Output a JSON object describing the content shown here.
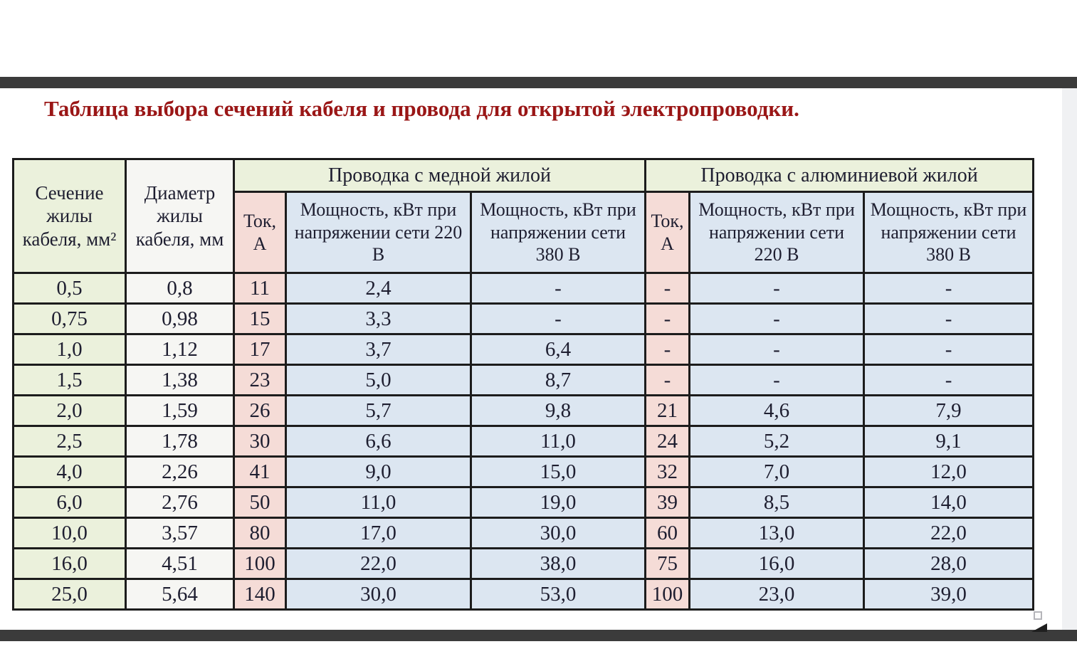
{
  "title": "Таблица выбора сечений кабеля и провода для открытой электропроводки.",
  "colors": {
    "title_red": "#9a1616",
    "bar_dark": "#3b3b3b",
    "strip_gray": "#f0f1f3",
    "cell_green": "#ebf1dc",
    "cell_white": "#f6f6f3",
    "cell_pink": "#f5dcd7",
    "cell_blue": "#dce6f1",
    "border_black": "#1c1c1c",
    "text_dark": "#1e1e30"
  },
  "table": {
    "headers": {
      "section": "Сечение жилы кабеля, мм²",
      "diameter": "Диаметр жилы кабеля, мм",
      "copper_group": "Проводка с медной жилой",
      "aluminum_group": "Проводка с алюминиевой жилой",
      "current": "Ток, А",
      "power_220": "Мощность, кВт при напряжении сети 220 В",
      "power_380": "Мощность, кВт при напряжении сети 380 В"
    },
    "rows": [
      {
        "section": "0,5",
        "diameter": "0,8",
        "cu_current": "11",
        "cu_220": "2,4",
        "cu_380": "-",
        "al_current": "-",
        "al_220": "-",
        "al_380": "-"
      },
      {
        "section": "0,75",
        "diameter": "0,98",
        "cu_current": "15",
        "cu_220": "3,3",
        "cu_380": "-",
        "al_current": "-",
        "al_220": "-",
        "al_380": "-"
      },
      {
        "section": "1,0",
        "diameter": "1,12",
        "cu_current": "17",
        "cu_220": "3,7",
        "cu_380": "6,4",
        "al_current": "-",
        "al_220": "-",
        "al_380": "-"
      },
      {
        "section": "1,5",
        "diameter": "1,38",
        "cu_current": "23",
        "cu_220": "5,0",
        "cu_380": "8,7",
        "al_current": "-",
        "al_220": "-",
        "al_380": "-"
      },
      {
        "section": "2,0",
        "diameter": "1,59",
        "cu_current": "26",
        "cu_220": "5,7",
        "cu_380": "9,8",
        "al_current": "21",
        "al_220": "4,6",
        "al_380": "7,9"
      },
      {
        "section": "2,5",
        "diameter": "1,78",
        "cu_current": "30",
        "cu_220": "6,6",
        "cu_380": "11,0",
        "al_current": "24",
        "al_220": "5,2",
        "al_380": "9,1"
      },
      {
        "section": "4,0",
        "diameter": "2,26",
        "cu_current": "41",
        "cu_220": "9,0",
        "cu_380": "15,0",
        "al_current": "32",
        "al_220": "7,0",
        "al_380": "12,0"
      },
      {
        "section": "6,0",
        "diameter": "2,76",
        "cu_current": "50",
        "cu_220": "11,0",
        "cu_380": "19,0",
        "al_current": "39",
        "al_220": "8,5",
        "al_380": "14,0"
      },
      {
        "section": "10,0",
        "diameter": "3,57",
        "cu_current": "80",
        "cu_220": "17,0",
        "cu_380": "30,0",
        "al_current": "60",
        "al_220": "13,0",
        "al_380": "22,0"
      },
      {
        "section": "16,0",
        "diameter": "4,51",
        "cu_current": "100",
        "cu_220": "22,0",
        "cu_380": "38,0",
        "al_current": "75",
        "al_220": "16,0",
        "al_380": "28,0"
      },
      {
        "section": "25,0",
        "diameter": "5,64",
        "cu_current": "140",
        "cu_220": "30,0",
        "cu_380": "53,0",
        "al_current": "100",
        "al_220": "23,0",
        "al_380": "39,0"
      }
    ]
  }
}
